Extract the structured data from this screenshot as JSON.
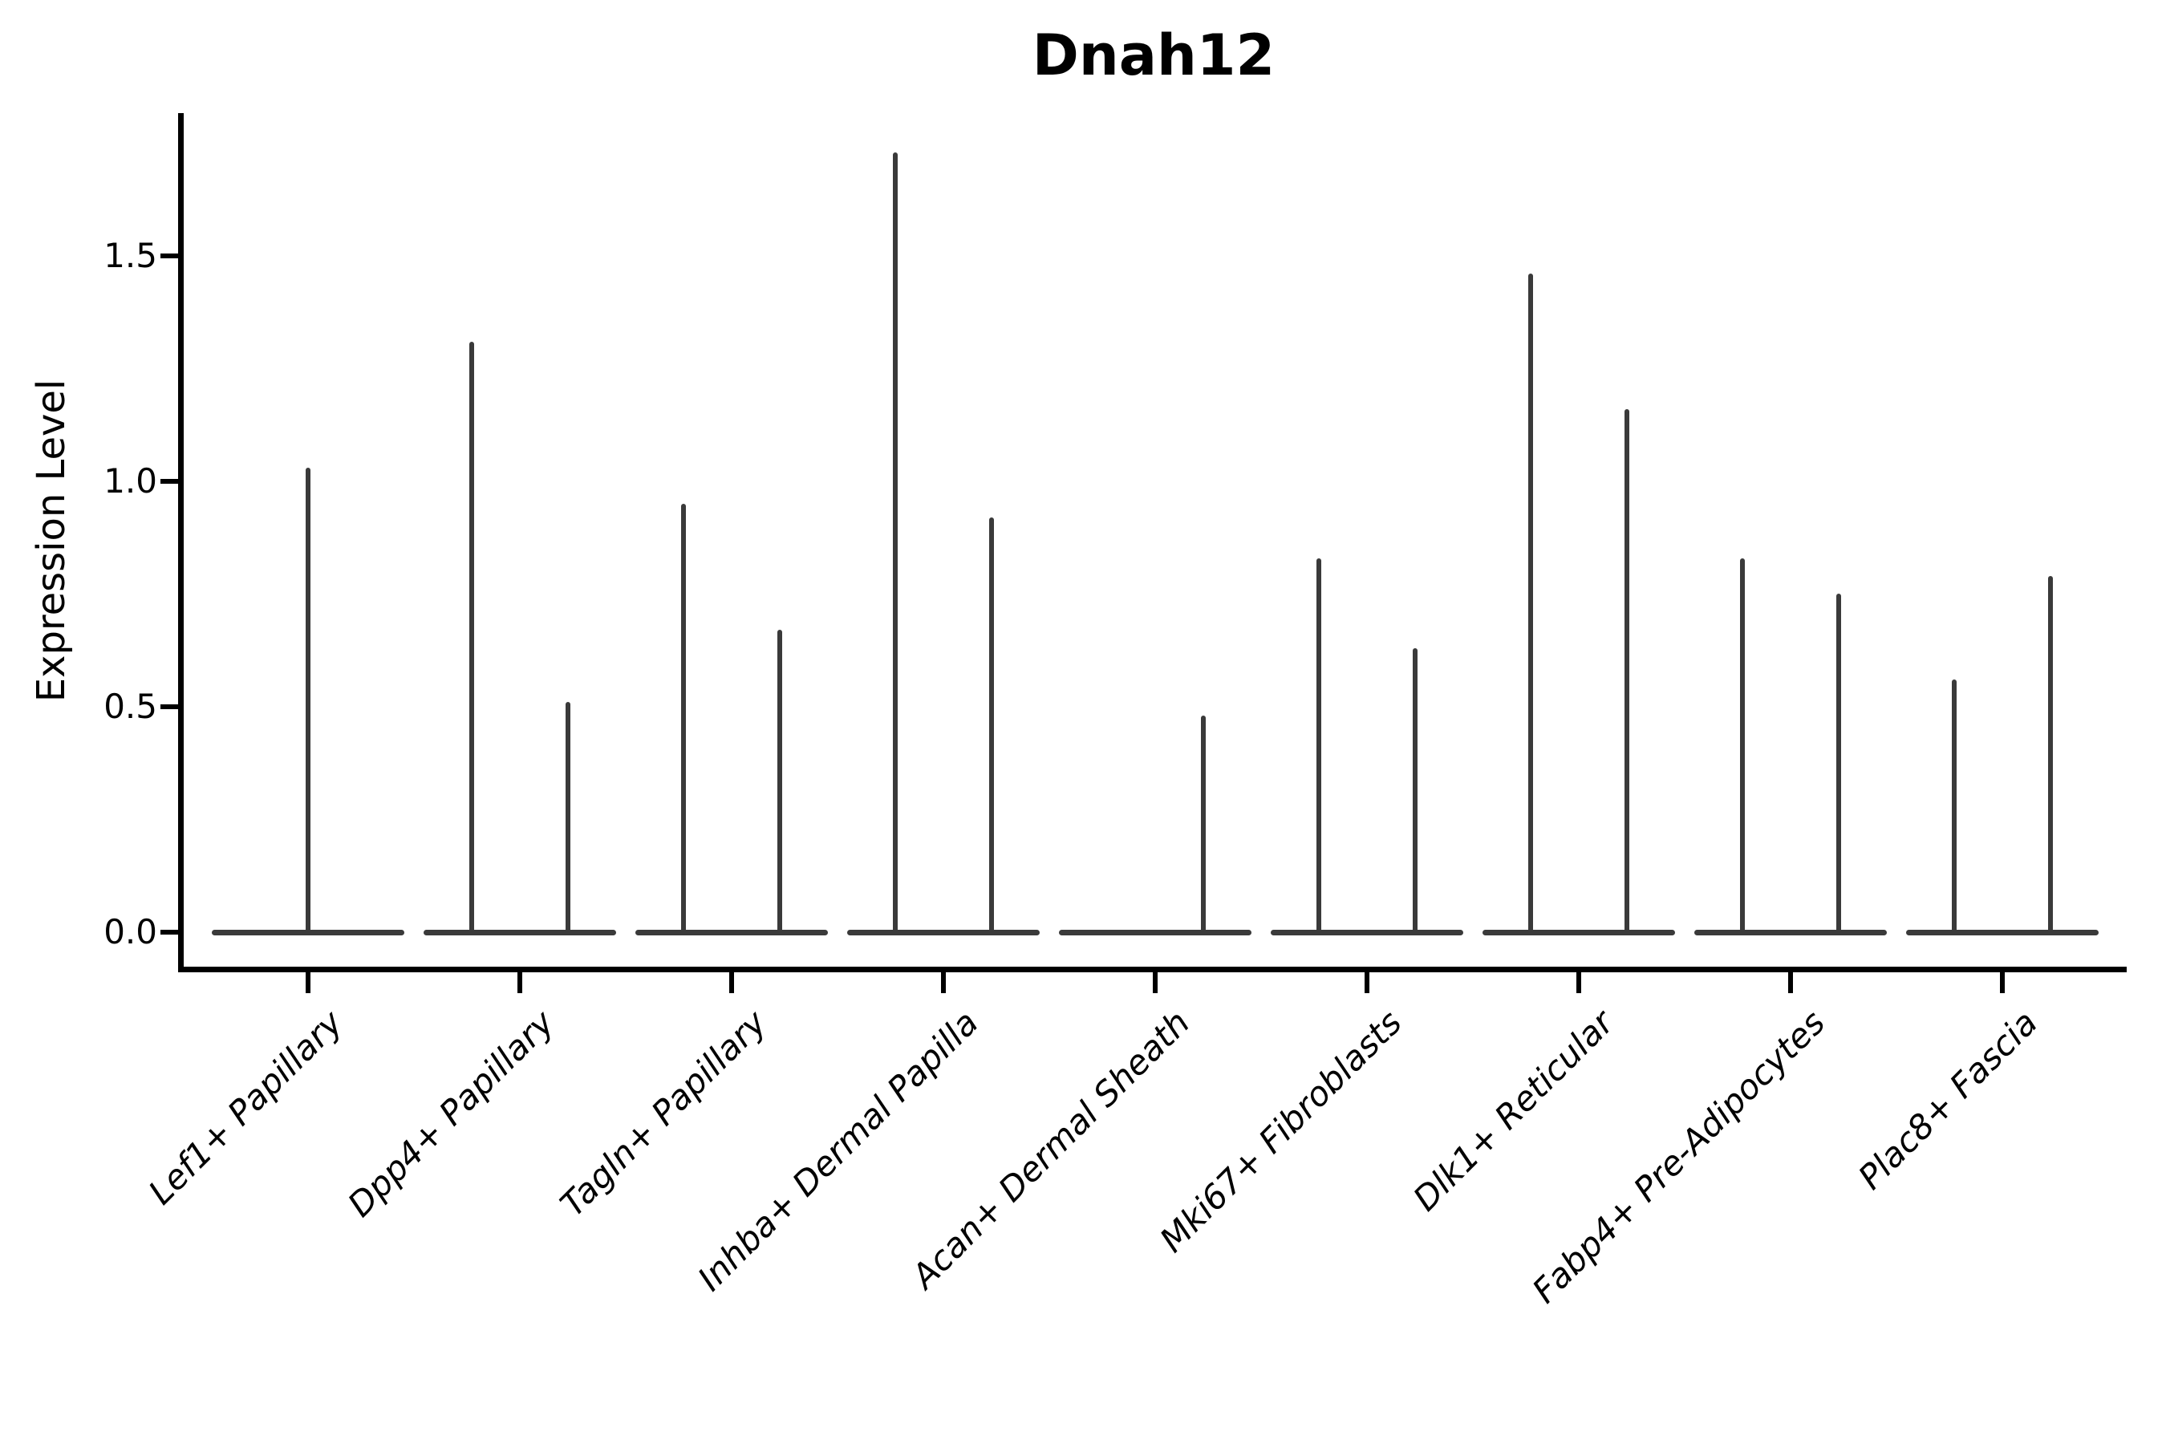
{
  "figure": {
    "title": "Dnah12",
    "background_color": "#ffffff",
    "text_color": "#000000",
    "violin_color": "#3a3a3a"
  },
  "axes": {
    "ylabel": "Expression Level",
    "ytick_labels": [
      "0.0",
      "0.5",
      "1.0",
      "1.5"
    ],
    "has_top_spine": false,
    "has_right_spine": false,
    "grid": false
  },
  "chart_data": {
    "type": "violin",
    "title": "Dnah12",
    "xlabel": "",
    "ylabel": "Expression Level",
    "ylim": [
      0,
      1.82
    ],
    "yticks": [
      0.0,
      0.5,
      1.0,
      1.5
    ],
    "grid": false,
    "legend": "none",
    "description": "Sparse single-cell expression violin plot: each cell-type group shows a flat density base at expression 0 with narrow spikes rising to the maximum expression value; most groups contain a left and right sub-violin.",
    "categories": [
      "Lef1+ Papillary",
      "Dpp4+ Papillary",
      "Tagln+ Papillary",
      "Inhba+ Dermal Papilla",
      "Acan+ Dermal Sheath",
      "Mki67+ Fibroblasts",
      "Dlk1+ Reticular",
      "Fabp4+ Pre-Adipocytes",
      "Plac8+ Fascia"
    ],
    "violins": [
      {
        "category": "Lef1+ Papillary",
        "baseline_value": 0,
        "spikes": [
          {
            "position": "center",
            "max": 1.03
          }
        ]
      },
      {
        "category": "Dpp4+ Papillary",
        "baseline_value": 0,
        "spikes": [
          {
            "position": "left",
            "max": 1.31
          },
          {
            "position": "right",
            "max": 0.51
          }
        ]
      },
      {
        "category": "Tagln+ Papillary",
        "baseline_value": 0,
        "spikes": [
          {
            "position": "left",
            "max": 0.95
          },
          {
            "position": "right",
            "max": 0.67
          }
        ]
      },
      {
        "category": "Inhba+ Dermal Papilla",
        "baseline_value": 0,
        "spikes": [
          {
            "position": "left",
            "max": 1.73
          },
          {
            "position": "right",
            "max": 0.92
          }
        ]
      },
      {
        "category": "Acan+ Dermal Sheath",
        "baseline_value": 0,
        "spikes": [
          {
            "position": "right",
            "max": 0.48
          }
        ]
      },
      {
        "category": "Mki67+ Fibroblasts",
        "baseline_value": 0,
        "spikes": [
          {
            "position": "left",
            "max": 0.83
          },
          {
            "position": "right",
            "max": 0.63
          }
        ]
      },
      {
        "category": "Dlk1+ Reticular",
        "baseline_value": 0,
        "spikes": [
          {
            "position": "left",
            "max": 1.46
          },
          {
            "position": "right",
            "max": 1.16
          }
        ]
      },
      {
        "category": "Fabp4+ Pre-Adipocytes",
        "baseline_value": 0,
        "spikes": [
          {
            "position": "left",
            "max": 0.83
          },
          {
            "position": "right",
            "max": 0.75
          }
        ]
      },
      {
        "category": "Plac8+ Fascia",
        "baseline_value": 0,
        "spikes": [
          {
            "position": "left",
            "max": 0.56
          },
          {
            "position": "right",
            "max": 0.79
          }
        ]
      }
    ]
  }
}
